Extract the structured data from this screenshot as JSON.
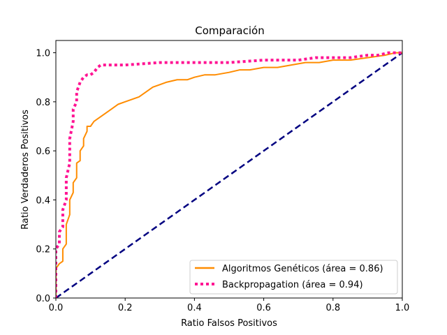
{
  "chart_data": {
    "type": "line",
    "title": "Comparación",
    "xlabel": "Ratio Falsos Positivos",
    "ylabel": "Ratio Verdaderos Positivos",
    "xlim": [
      0.0,
      1.0
    ],
    "ylim": [
      0.0,
      1.05
    ],
    "xticks": [
      0.0,
      0.2,
      0.4,
      0.6,
      0.8,
      1.0
    ],
    "yticks": [
      0.0,
      0.2,
      0.4,
      0.6,
      0.8,
      1.0
    ],
    "xtick_labels": [
      "0.0",
      "0.2",
      "0.4",
      "0.6",
      "0.8",
      "1.0"
    ],
    "ytick_labels": [
      "0.0",
      "0.2",
      "0.4",
      "0.6",
      "0.8",
      "1.0"
    ],
    "grid": false,
    "legend_position": "lower-right",
    "series": [
      {
        "name": "Algoritmos Genéticos (área = 0.86)",
        "color": "#ff8c00",
        "style": "solid",
        "x": [
          0.0,
          0.0,
          0.01,
          0.02,
          0.02,
          0.03,
          0.03,
          0.04,
          0.04,
          0.05,
          0.05,
          0.06,
          0.06,
          0.07,
          0.07,
          0.08,
          0.08,
          0.09,
          0.09,
          0.1,
          0.1,
          0.11,
          0.12,
          0.13,
          0.13,
          0.14,
          0.15,
          0.16,
          0.18,
          0.2,
          0.22,
          0.24,
          0.26,
          0.28,
          0.3,
          0.32,
          0.35,
          0.38,
          0.4,
          0.43,
          0.46,
          0.5,
          0.53,
          0.56,
          0.6,
          0.64,
          0.68,
          0.72,
          0.76,
          0.8,
          0.85,
          0.9,
          0.95,
          0.98,
          1.0
        ],
        "y": [
          0.0,
          0.12,
          0.14,
          0.15,
          0.2,
          0.22,
          0.3,
          0.34,
          0.4,
          0.43,
          0.47,
          0.49,
          0.55,
          0.56,
          0.6,
          0.62,
          0.65,
          0.68,
          0.7,
          0.7,
          0.7,
          0.72,
          0.73,
          0.74,
          0.74,
          0.75,
          0.76,
          0.77,
          0.79,
          0.8,
          0.81,
          0.82,
          0.84,
          0.86,
          0.87,
          0.88,
          0.89,
          0.89,
          0.9,
          0.91,
          0.91,
          0.92,
          0.93,
          0.93,
          0.94,
          0.94,
          0.95,
          0.96,
          0.96,
          0.97,
          0.97,
          0.98,
          0.99,
          1.0,
          1.0
        ]
      },
      {
        "name": "Backpropagation (área = 0.94)",
        "color": "#ff1493",
        "style": "dotted",
        "x": [
          0.0,
          0.0,
          0.01,
          0.01,
          0.02,
          0.02,
          0.03,
          0.03,
          0.04,
          0.04,
          0.05,
          0.05,
          0.06,
          0.06,
          0.07,
          0.08,
          0.09,
          0.1,
          0.11,
          0.12,
          0.13,
          0.14,
          0.16,
          0.2,
          0.3,
          0.4,
          0.5,
          0.6,
          0.65,
          0.7,
          0.75,
          0.8,
          0.85,
          0.9,
          0.93,
          0.96,
          0.98,
          1.0
        ],
        "y": [
          0.0,
          0.2,
          0.22,
          0.27,
          0.29,
          0.36,
          0.4,
          0.49,
          0.55,
          0.65,
          0.72,
          0.77,
          0.8,
          0.84,
          0.88,
          0.9,
          0.91,
          0.91,
          0.92,
          0.94,
          0.95,
          0.95,
          0.95,
          0.95,
          0.96,
          0.96,
          0.96,
          0.97,
          0.97,
          0.97,
          0.98,
          0.98,
          0.98,
          0.99,
          0.99,
          1.0,
          1.0,
          1.0
        ]
      },
      {
        "color": "#000080",
        "style": "dashed",
        "x": [
          0.0,
          1.0
        ],
        "y": [
          0.0,
          1.0
        ]
      }
    ]
  }
}
